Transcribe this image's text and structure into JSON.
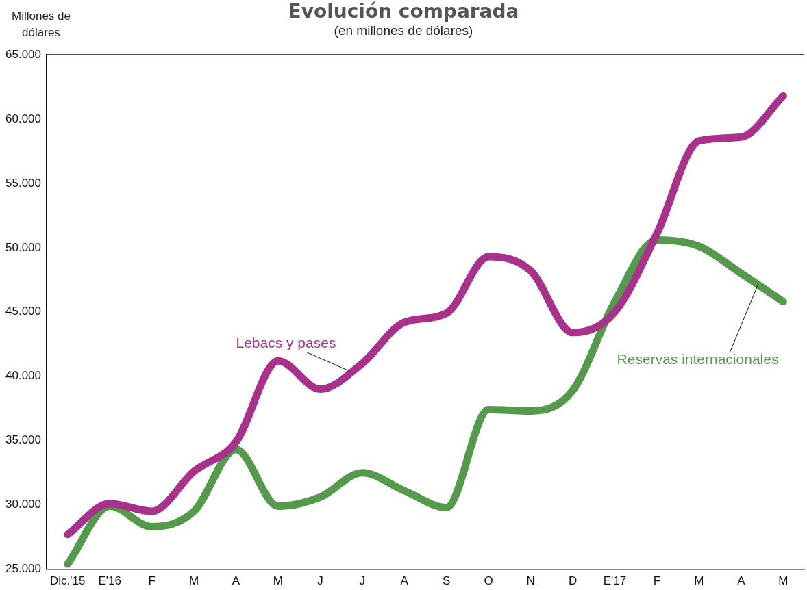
{
  "chart_data": {
    "type": "line",
    "title": "Evolución comparada",
    "subtitle": "(en millones de dólares)",
    "ylabel": "Millones de dólares",
    "categories": [
      "Dic.'15",
      "E'16",
      "F",
      "M",
      "A",
      "M",
      "J",
      "J",
      "A",
      "S",
      "O",
      "N",
      "D",
      "E'17",
      "F",
      "M",
      "A",
      "M"
    ],
    "series": [
      {
        "name": "Lebacs y pases",
        "color": "#a8318c",
        "values": [
          27700,
          30100,
          29500,
          32600,
          34900,
          41200,
          39000,
          41000,
          44200,
          44900,
          49300,
          48200,
          43400,
          45000,
          51100,
          58300,
          58600,
          61800
        ]
      },
      {
        "name": "Reservas internacionales",
        "color": "#559a4c",
        "values": [
          25400,
          29900,
          28300,
          29500,
          34300,
          29900,
          30600,
          32500,
          31100,
          29800,
          37400,
          37300,
          38900,
          45800,
          50600,
          50100,
          48000,
          45800
        ]
      }
    ],
    "ylim": [
      25000,
      65000
    ],
    "yticks": [
      {
        "value": 25000,
        "label": "25.000"
      },
      {
        "value": 30000,
        "label": "30.000"
      },
      {
        "value": 35000,
        "label": "35.000"
      },
      {
        "value": 40000,
        "label": "40.000"
      },
      {
        "value": 45000,
        "label": "45.000"
      },
      {
        "value": 50000,
        "label": "50.000"
      },
      {
        "value": 55000,
        "label": "55.000"
      },
      {
        "value": 60000,
        "label": "60.000"
      },
      {
        "value": 65000,
        "label": "65.000"
      }
    ],
    "grid": false,
    "legend": false,
    "marker": "none",
    "line_style": "solid"
  }
}
